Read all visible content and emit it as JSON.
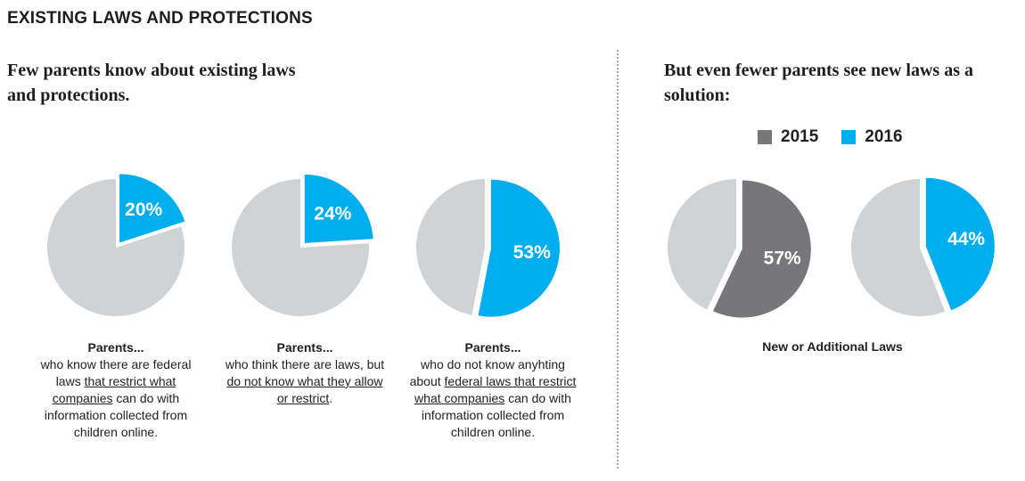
{
  "header": {
    "title": "EXISTING LAWS AND PROTECTIONS"
  },
  "left_section": {
    "subtitle": "Few parents know about existing laws and protections."
  },
  "right_section": {
    "subtitle": "But even fewer parents see new laws as a solution:",
    "caption": "New or Additional Laws"
  },
  "legend": [
    {
      "label": "2015",
      "color": "#77777a"
    },
    {
      "label": "2016",
      "color": "#00adee"
    }
  ],
  "captions": [
    {
      "head": "Parents...",
      "parts": [
        {
          "text": "who know there are federal laws ",
          "u": false
        },
        {
          "text": "that restrict what companies",
          "u": true
        },
        {
          "text": " can do with information collected from children online.",
          "u": false
        }
      ]
    },
    {
      "head": "Parents...",
      "parts": [
        {
          "text": "who think there are laws, but ",
          "u": false
        },
        {
          "text": "do not know what they allow or restrict",
          "u": true
        },
        {
          "text": ".",
          "u": false
        }
      ]
    },
    {
      "head": "Parents...",
      "parts": [
        {
          "text": "who do not know anyhting about ",
          "u": false
        },
        {
          "text": "federal laws that restrict what companies",
          "u": true
        },
        {
          "text": " can do with information collected from children online.",
          "u": false
        }
      ]
    }
  ],
  "chart_data": [
    {
      "type": "pie",
      "value": 20,
      "label": "20%",
      "color": "#00adee",
      "rest_color": "#d1d2d4"
    },
    {
      "type": "pie",
      "value": 24,
      "label": "24%",
      "color": "#00adee",
      "rest_color": "#d1d2d4"
    },
    {
      "type": "pie",
      "value": 53,
      "label": "53%",
      "color": "#00adee",
      "rest_color": "#d1d2d4"
    },
    {
      "type": "pie",
      "year": "2015",
      "value": 57,
      "label": "57%",
      "color": "#77777a",
      "rest_color": "#d1d2d4"
    },
    {
      "type": "pie",
      "year": "2016",
      "value": 44,
      "label": "44%",
      "color": "#00adee",
      "rest_color": "#d1d2d4"
    }
  ]
}
